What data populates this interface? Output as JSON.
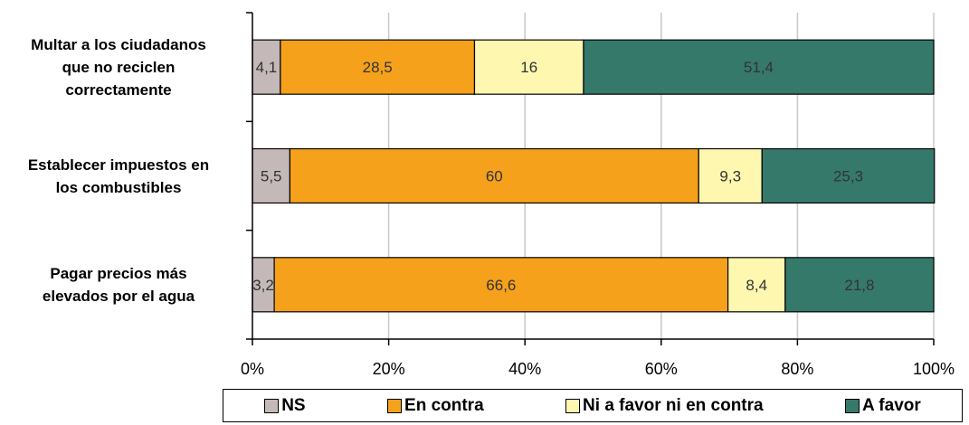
{
  "chart_data": {
    "type": "bar",
    "orientation": "horizontal",
    "stacked": true,
    "categories": [
      "Multar a los ciudadanos que no reciclen correctamente",
      "Establecer impuestos en los combustibles",
      "Pagar precios más elevados por el agua"
    ],
    "category_lines": [
      [
        "Multar a los ciudadanos",
        "que no reciclen",
        "correctamente"
      ],
      [
        "Establecer impuestos en",
        "los combustibles"
      ],
      [
        "Pagar precios más",
        "elevados por el agua"
      ]
    ],
    "series": [
      {
        "name": "NS",
        "color": "#c4b8b8",
        "values": [
          4.1,
          5.5,
          3.2
        ],
        "labels": [
          "4,1",
          "5,5",
          "3,2"
        ]
      },
      {
        "name": "En contra",
        "color": "#f5a11c",
        "values": [
          28.5,
          60,
          66.6
        ],
        "labels": [
          "28,5",
          "60",
          "66,6"
        ]
      },
      {
        "name": "Ni a favor ni en contra",
        "color": "#fdf7b0",
        "values": [
          16,
          9.3,
          8.4
        ],
        "labels": [
          "16",
          "9,3",
          "8,4"
        ]
      },
      {
        "name": "A favor",
        "color": "#35796b",
        "values": [
          51.4,
          25.3,
          21.8
        ],
        "labels": [
          "51,4",
          "25,3",
          "21,8"
        ]
      }
    ],
    "x_ticks": [
      "0%",
      "20%",
      "40%",
      "60%",
      "80%",
      "100%"
    ],
    "xlim": [
      0,
      100
    ],
    "grid": "vertical",
    "legend": "bottom",
    "title": "",
    "xlabel": "",
    "ylabel": ""
  }
}
